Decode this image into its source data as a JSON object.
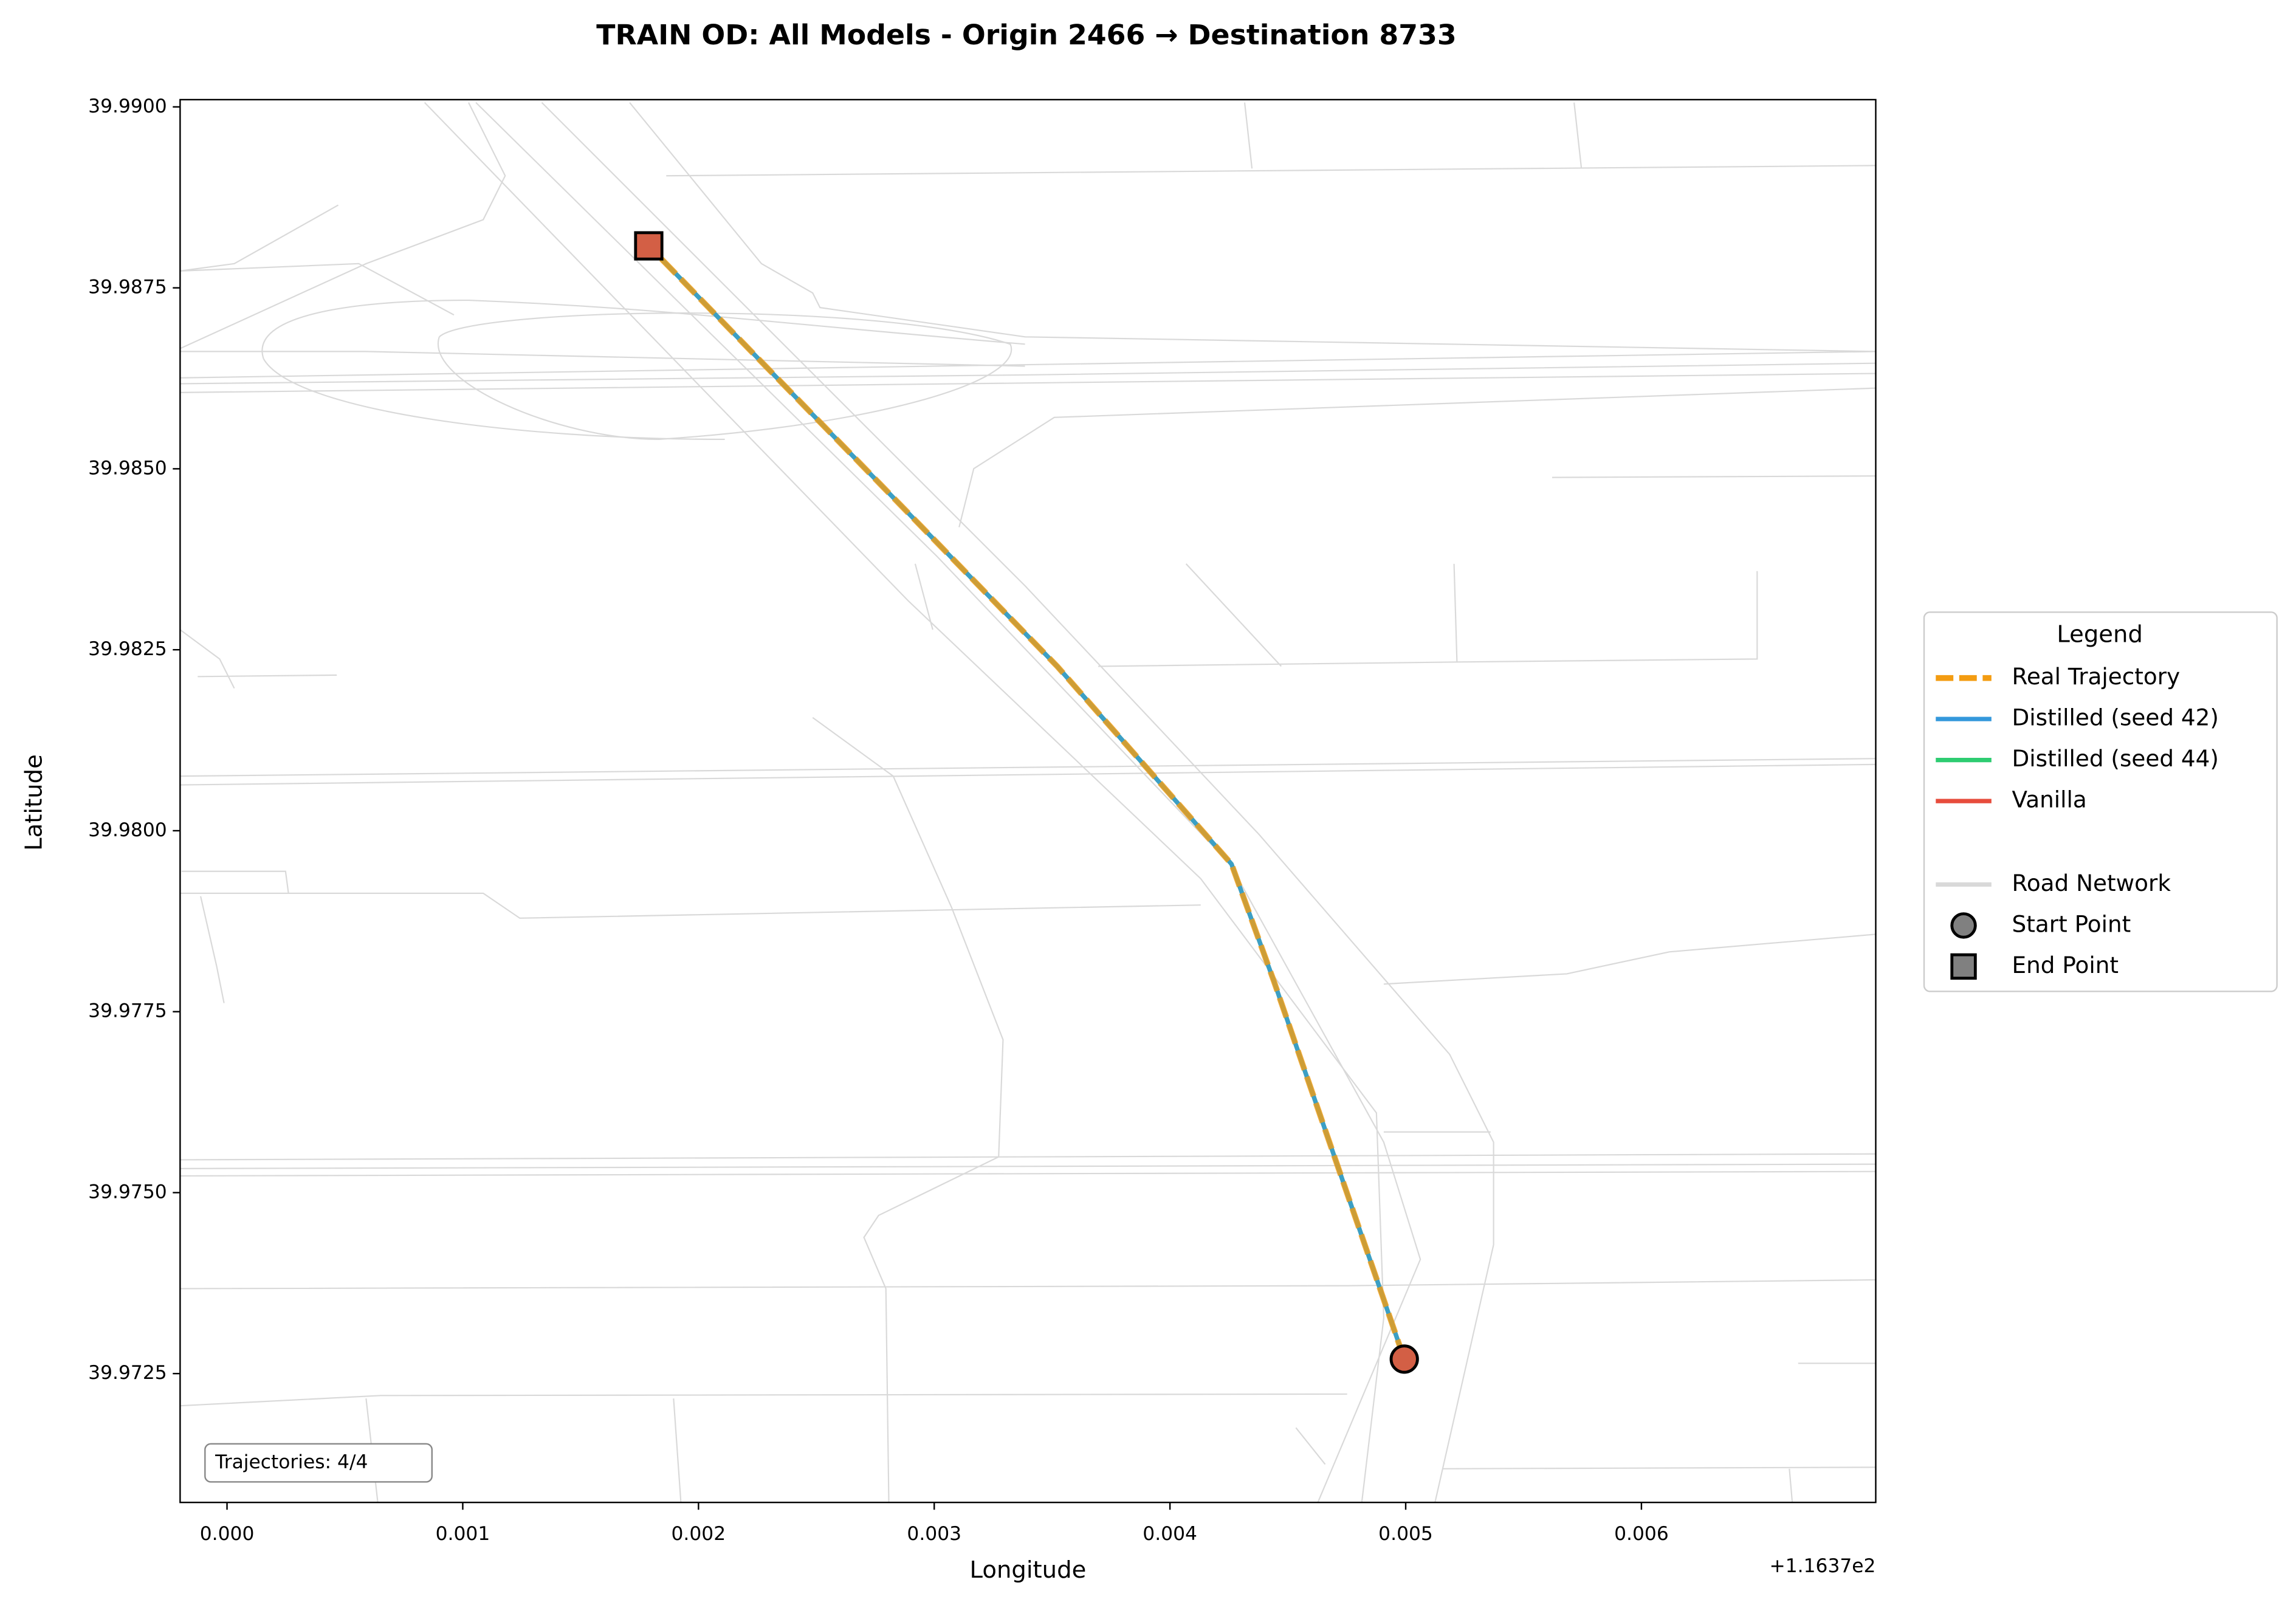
{
  "chart_data": {
    "type": "line",
    "title": "TRAIN OD: All Models - Origin 2466 → Destination 8733",
    "xlabel": "Longitude",
    "ylabel": "Latitude",
    "x_offset_label": "+1.1637e2",
    "xlim": [
      -0.000199,
      0.006994
    ],
    "ylim": [
      39.97072,
      39.9901
    ],
    "xticks": [
      {
        "value": 0,
        "label": "0.000"
      },
      {
        "value": 0.001,
        "label": "0.001"
      },
      {
        "value": 0.002,
        "label": "0.002"
      },
      {
        "value": 0.003,
        "label": "0.003"
      },
      {
        "value": 0.004,
        "label": "0.004"
      },
      {
        "value": 0.005,
        "label": "0.005"
      },
      {
        "value": 0.006,
        "label": "0.006"
      }
    ],
    "yticks": [
      39.9725,
      {
        "value": 39.975,
        "label": "39.9750"
      },
      39.9775,
      {
        "value": 39.98,
        "label": "39.9800"
      },
      39.9825,
      {
        "value": 39.985,
        "label": "39.9850"
      },
      39.9875,
      {
        "value": 39.99,
        "label": "39.9900"
      }
    ],
    "series": [
      {
        "name": "Vanilla",
        "color": "#e74c3c",
        "style": "solid",
        "x": [
          0.004994,
          0.004441,
          0.004261,
          0.003522,
          0.001789
        ],
        "y": [
          39.9727,
          39.97792,
          39.97954,
          39.98227,
          39.98808
        ]
      },
      {
        "name": "Distilled (seed 44)",
        "color": "#2ecc71",
        "style": "solid",
        "x": [
          0.004994,
          0.004441,
          0.004261,
          0.003522,
          0.001789
        ],
        "y": [
          39.9727,
          39.97792,
          39.97954,
          39.98227,
          39.98808
        ]
      },
      {
        "name": "Distilled (seed 42)",
        "color": "#3498db",
        "style": "solid",
        "x": [
          0.004994,
          0.004441,
          0.004261,
          0.003522,
          0.001789
        ],
        "y": [
          39.9727,
          39.97792,
          39.97954,
          39.98227,
          39.98808
        ]
      },
      {
        "name": "Real Trajectory",
        "color": "#f39c12",
        "style": "dashed",
        "x": [
          0.004994,
          0.004441,
          0.004261,
          0.003522,
          0.001789
        ],
        "y": [
          39.9727,
          39.97792,
          39.97954,
          39.98227,
          39.98808
        ]
      }
    ],
    "legend_title": "Legend",
    "legend_position": "right",
    "road_network": {
      "name": "Road Network",
      "color": "#d9d9d9"
    },
    "start_point": {
      "name": "Start Point",
      "x": 0.004994,
      "y": 39.9727,
      "color": "#d35f45"
    },
    "end_point": {
      "name": "End Point",
      "x": 0.001789,
      "y": 39.98808,
      "color": "#d35f45"
    },
    "legend_marker_color": "#808080",
    "annotation": "Trajectories: 4/4"
  }
}
